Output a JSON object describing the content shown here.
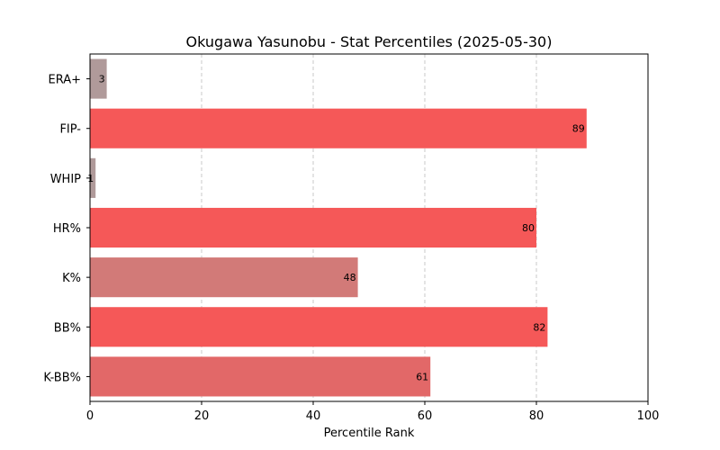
{
  "chart_data": {
    "type": "bar",
    "orientation": "horizontal",
    "title": "Okugawa Yasunobu - Stat Percentiles (2025-05-30)",
    "xlabel": "Percentile Rank",
    "ylabel": "",
    "xlim": [
      0,
      100
    ],
    "xticks": [
      0,
      20,
      40,
      60,
      80,
      100
    ],
    "grid": "x-dashed",
    "categories": [
      "ERA+",
      "FIP-",
      "WHIP",
      "HR%",
      "K%",
      "BB%",
      "K-BB%"
    ],
    "values": [
      3,
      89,
      1,
      80,
      48,
      82,
      61
    ],
    "data_labels": [
      "3",
      "89",
      "1",
      "80",
      "48",
      "82",
      "61"
    ],
    "colors": [
      "#b09a9a",
      "#f55858",
      "#b09a9a",
      "#f55858",
      "#d27a78",
      "#f55858",
      "#e26868"
    ]
  }
}
